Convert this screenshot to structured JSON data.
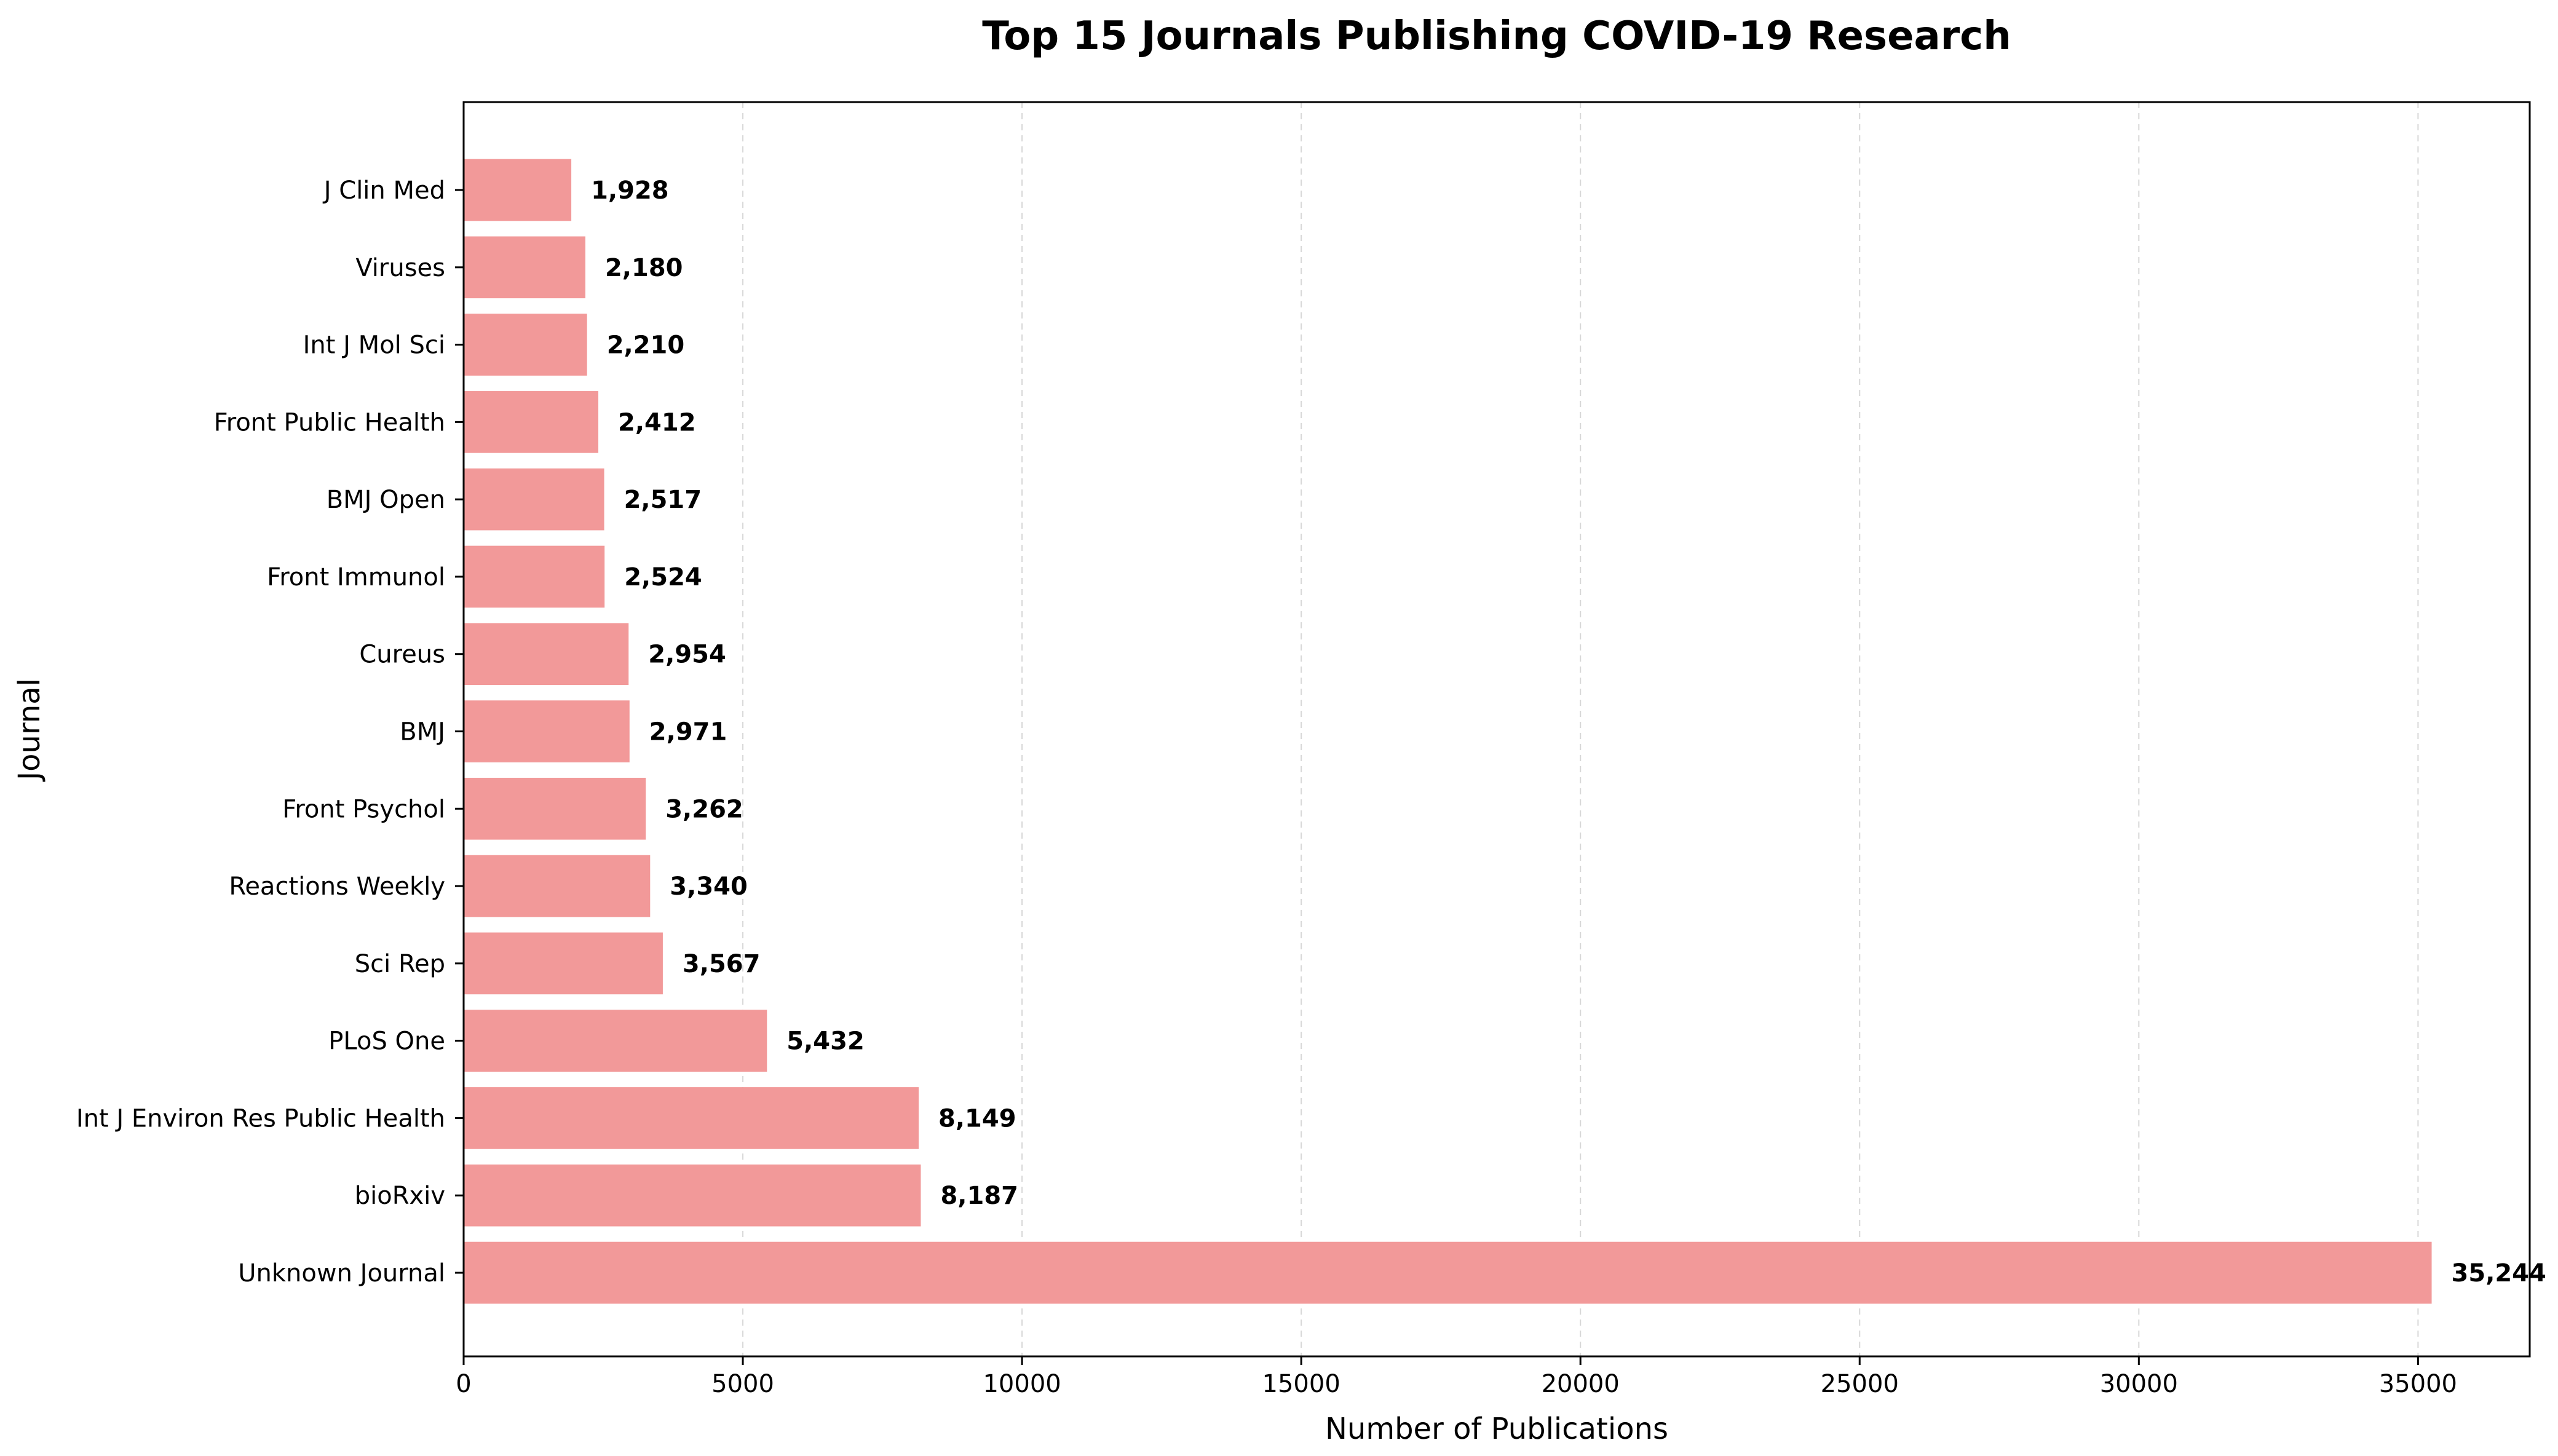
{
  "chart_data": {
    "type": "bar",
    "orientation": "horizontal",
    "title": "Top 15 Journals Publishing COVID-19 Research",
    "xlabel": "Number of Publications",
    "ylabel": "Journal",
    "xlim": [
      0,
      37000
    ],
    "xticks": [
      0,
      5000,
      10000,
      15000,
      20000,
      25000,
      30000,
      35000
    ],
    "xtick_labels": [
      "0",
      "5000",
      "10000",
      "15000",
      "20000",
      "25000",
      "30000",
      "35000"
    ],
    "grid": "x-axis dashed",
    "bar_color": "#f29999",
    "categories": [
      "Unknown Journal",
      "bioRxiv",
      "Int J Environ Res Public Health",
      "PLoS One",
      "Sci Rep",
      "Reactions Weekly",
      "Front Psychol",
      "BMJ",
      "Cureus",
      "Front Immunol",
      "BMJ Open",
      "Front Public Health",
      "Int J Mol Sci",
      "Viruses",
      "J Clin Med"
    ],
    "values": [
      35244,
      8187,
      8149,
      5432,
      3567,
      3340,
      3262,
      2971,
      2954,
      2524,
      2517,
      2412,
      2210,
      2180,
      1928
    ],
    "value_labels": [
      "35,244",
      "8,187",
      "8,149",
      "5,432",
      "3,567",
      "3,340",
      "3,262",
      "2,971",
      "2,954",
      "2,524",
      "2,517",
      "2,412",
      "2,210",
      "2,180",
      "1,928"
    ]
  }
}
